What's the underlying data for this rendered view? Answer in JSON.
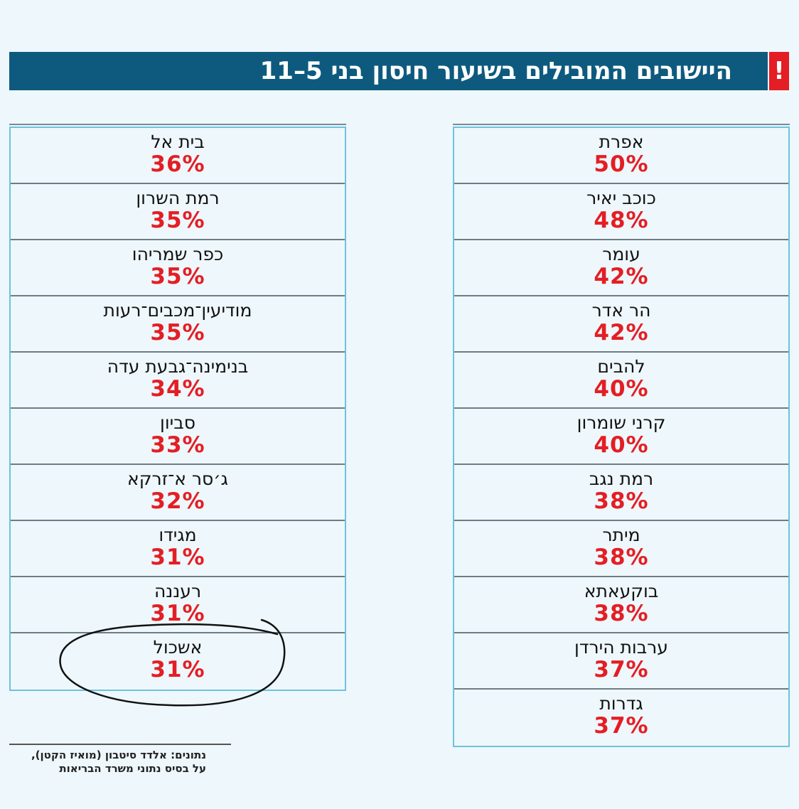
{
  "header": {
    "title": "היישובים המובילים בשיעור חיסון בני 5–11",
    "icon": "!"
  },
  "right_table": {
    "rows": [
      [
        "אפרת",
        "50%"
      ],
      [
        "כוכב יאיר",
        "48%"
      ],
      [
        "עומר",
        "42%"
      ],
      [
        "הר אדר",
        "42%"
      ],
      [
        "להבים",
        "40%"
      ],
      [
        "קרני שומרון",
        "40%"
      ],
      [
        "רמת נגב",
        "38%"
      ],
      [
        "מיתר",
        "38%"
      ],
      [
        "בוקעאתא",
        "38%"
      ],
      [
        "ערבות הירדן",
        "37%"
      ],
      [
        "גדרות",
        "37%"
      ]
    ]
  },
  "left_table": {
    "rows": [
      [
        "בית אל",
        "36%"
      ],
      [
        "רמת השרון",
        "35%"
      ],
      [
        "כפר שמריהו",
        "35%"
      ],
      [
        "מודיעין־מכבים־רעות",
        "35%"
      ],
      [
        "בנימינה־גבעת עדה",
        "34%"
      ],
      [
        "סביון",
        "33%"
      ],
      [
        "ג׳סר א־זרקא",
        "32%"
      ],
      [
        "מגידו",
        "31%"
      ],
      [
        "רעננה",
        "31%"
      ],
      [
        "אשכול",
        "31%"
      ]
    ]
  },
  "source": [
    "נתונים: אלדד סיטבון (מואיז הקטן),",
    "על בסיס נתוני משרד הבריאות"
  ]
}
